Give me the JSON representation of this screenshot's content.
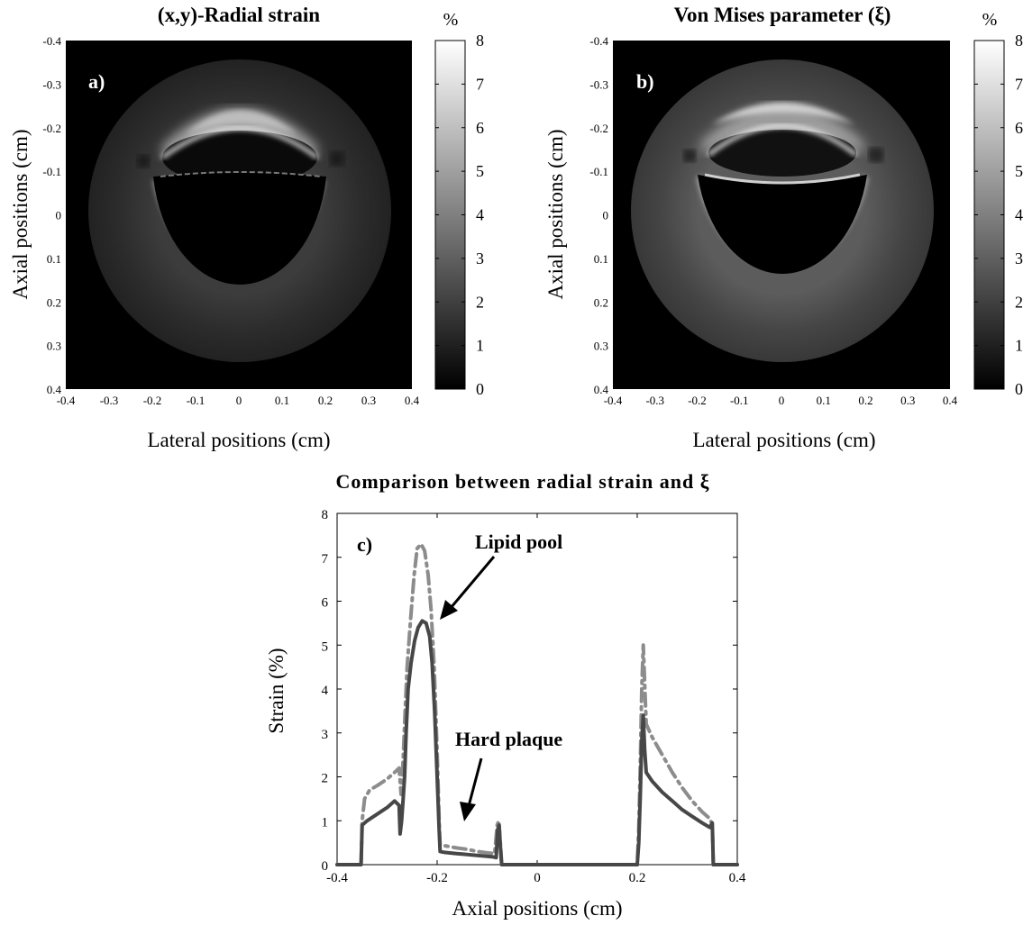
{
  "chart_data": [
    {
      "type": "heatmap",
      "panel_label": "a)",
      "title": "(x,y)-Radial strain",
      "xlabel": "Lateral positions (cm)",
      "ylabel": "Axial positions (cm)",
      "xlim": [
        -0.4,
        0.4
      ],
      "ylim": [
        -0.4,
        0.4
      ],
      "y_reversed": true,
      "x_ticks": [
        "-0.4",
        "-0.3",
        "-0.2",
        "-0.1",
        "0",
        "0.1",
        "0.2",
        "0.3",
        "0.4"
      ],
      "y_ticks": [
        "-0.4",
        "-0.3",
        "-0.2",
        "-0.1",
        "0",
        "0.1",
        "0.2",
        "0.3",
        "0.4"
      ],
      "colorbar": {
        "unit": "%",
        "range": [
          0,
          8
        ],
        "ticks": [
          "0",
          "1",
          "2",
          "3",
          "4",
          "5",
          "6",
          "7",
          "8"
        ],
        "colormap": "gray"
      }
    },
    {
      "type": "heatmap",
      "panel_label": "b)",
      "title": "Von Mises parameter (ξ)",
      "xlabel": "Lateral positions (cm)",
      "ylabel": "Axial positions (cm)",
      "xlim": [
        -0.4,
        0.4
      ],
      "ylim": [
        -0.4,
        0.4
      ],
      "y_reversed": true,
      "x_ticks": [
        "-0.4",
        "-0.3",
        "-0.2",
        "-0.1",
        "0",
        "0.1",
        "0.2",
        "0.3",
        "0.4"
      ],
      "y_ticks": [
        "-0.4",
        "-0.3",
        "-0.2",
        "-0.1",
        "0",
        "0.1",
        "0.2",
        "0.3",
        "0.4"
      ],
      "colorbar": {
        "unit": "%",
        "range": [
          0,
          8
        ],
        "ticks": [
          "0",
          "1",
          "2",
          "3",
          "4",
          "5",
          "6",
          "7",
          "8"
        ],
        "colormap": "gray"
      }
    },
    {
      "type": "line",
      "panel_label": "c)",
      "title": "Comparison between radial strain and ξ",
      "xlabel": "Axial positions (cm)",
      "ylabel": "Strain (%)",
      "xlim": [
        -0.4,
        0.4
      ],
      "ylim": [
        0,
        8
      ],
      "x_ticks": [
        "-0.4",
        "-0.2",
        "0",
        "0.2",
        "0.4"
      ],
      "y_ticks": [
        "0",
        "1",
        "2",
        "3",
        "4",
        "5",
        "6",
        "7",
        "8"
      ],
      "annotations": [
        {
          "text": "Lipid pool",
          "x": -0.2,
          "y": 5.6
        },
        {
          "text": "Hard plaque",
          "x": -0.15,
          "y": 0.8
        }
      ],
      "series": [
        {
          "style": "solid",
          "color": "#474747",
          "points": [
            [
              -0.4,
              0
            ],
            [
              -0.352,
              0
            ],
            [
              -0.35,
              0.9
            ],
            [
              -0.34,
              1.0
            ],
            [
              -0.32,
              1.15
            ],
            [
              -0.3,
              1.3
            ],
            [
              -0.285,
              1.45
            ],
            [
              -0.276,
              1.35
            ],
            [
              -0.274,
              0.7
            ],
            [
              -0.271,
              1.0
            ],
            [
              -0.268,
              1.5
            ],
            [
              -0.265,
              2.0
            ],
            [
              -0.262,
              3.0
            ],
            [
              -0.258,
              4.0
            ],
            [
              -0.252,
              4.6
            ],
            [
              -0.245,
              5.1
            ],
            [
              -0.238,
              5.4
            ],
            [
              -0.23,
              5.55
            ],
            [
              -0.222,
              5.5
            ],
            [
              -0.215,
              5.2
            ],
            [
              -0.21,
              4.6
            ],
            [
              -0.205,
              3.5
            ],
            [
              -0.2,
              2.0
            ],
            [
              -0.196,
              0.8
            ],
            [
              -0.194,
              0.3
            ],
            [
              -0.185,
              0.28
            ],
            [
              -0.17,
              0.26
            ],
            [
              -0.15,
              0.24
            ],
            [
              -0.13,
              0.22
            ],
            [
              -0.11,
              0.2
            ],
            [
              -0.09,
              0.18
            ],
            [
              -0.082,
              0.16
            ],
            [
              -0.079,
              0.8
            ],
            [
              -0.076,
              0.9
            ],
            [
              -0.073,
              0.3
            ],
            [
              -0.071,
              0
            ],
            [
              0.2,
              0
            ],
            [
              0.203,
              0.5
            ],
            [
              0.206,
              1.5
            ],
            [
              0.209,
              2.8
            ],
            [
              0.212,
              3.4
            ],
            [
              0.215,
              2.6
            ],
            [
              0.218,
              2.1
            ],
            [
              0.23,
              1.9
            ],
            [
              0.25,
              1.65
            ],
            [
              0.27,
              1.45
            ],
            [
              0.29,
              1.25
            ],
            [
              0.31,
              1.1
            ],
            [
              0.33,
              0.95
            ],
            [
              0.345,
              0.85
            ],
            [
              0.35,
              0.95
            ],
            [
              0.352,
              0
            ],
            [
              0.4,
              0
            ]
          ]
        },
        {
          "style": "dashdot",
          "color": "#8c8c8c",
          "points": [
            [
              -0.4,
              0
            ],
            [
              -0.352,
              0
            ],
            [
              -0.35,
              1.0
            ],
            [
              -0.345,
              1.5
            ],
            [
              -0.335,
              1.7
            ],
            [
              -0.32,
              1.8
            ],
            [
              -0.3,
              1.95
            ],
            [
              -0.285,
              2.1
            ],
            [
              -0.276,
              2.2
            ],
            [
              -0.272,
              1.6
            ],
            [
              -0.268,
              2.4
            ],
            [
              -0.264,
              3.5
            ],
            [
              -0.26,
              4.5
            ],
            [
              -0.253,
              5.6
            ],
            [
              -0.246,
              6.6
            ],
            [
              -0.24,
              7.2
            ],
            [
              -0.232,
              7.3
            ],
            [
              -0.225,
              7.15
            ],
            [
              -0.218,
              6.6
            ],
            [
              -0.212,
              5.8
            ],
            [
              -0.206,
              4.5
            ],
            [
              -0.2,
              2.6
            ],
            [
              -0.196,
              1.0
            ],
            [
              -0.194,
              0.45
            ],
            [
              -0.18,
              0.42
            ],
            [
              -0.16,
              0.38
            ],
            [
              -0.14,
              0.35
            ],
            [
              -0.12,
              0.3
            ],
            [
              -0.1,
              0.27
            ],
            [
              -0.085,
              0.25
            ],
            [
              -0.08,
              0.9
            ],
            [
              -0.077,
              1.0
            ],
            [
              -0.073,
              0.4
            ],
            [
              -0.071,
              0
            ],
            [
              0.2,
              0
            ],
            [
              0.203,
              0.8
            ],
            [
              0.206,
              2.2
            ],
            [
              0.209,
              4.0
            ],
            [
              0.212,
              5.0
            ],
            [
              0.215,
              4.1
            ],
            [
              0.218,
              3.2
            ],
            [
              0.23,
              2.9
            ],
            [
              0.25,
              2.5
            ],
            [
              0.27,
              2.1
            ],
            [
              0.29,
              1.75
            ],
            [
              0.31,
              1.45
            ],
            [
              0.33,
              1.2
            ],
            [
              0.345,
              1.05
            ],
            [
              0.35,
              0.9
            ],
            [
              0.352,
              0
            ],
            [
              0.4,
              0
            ]
          ]
        }
      ]
    }
  ]
}
